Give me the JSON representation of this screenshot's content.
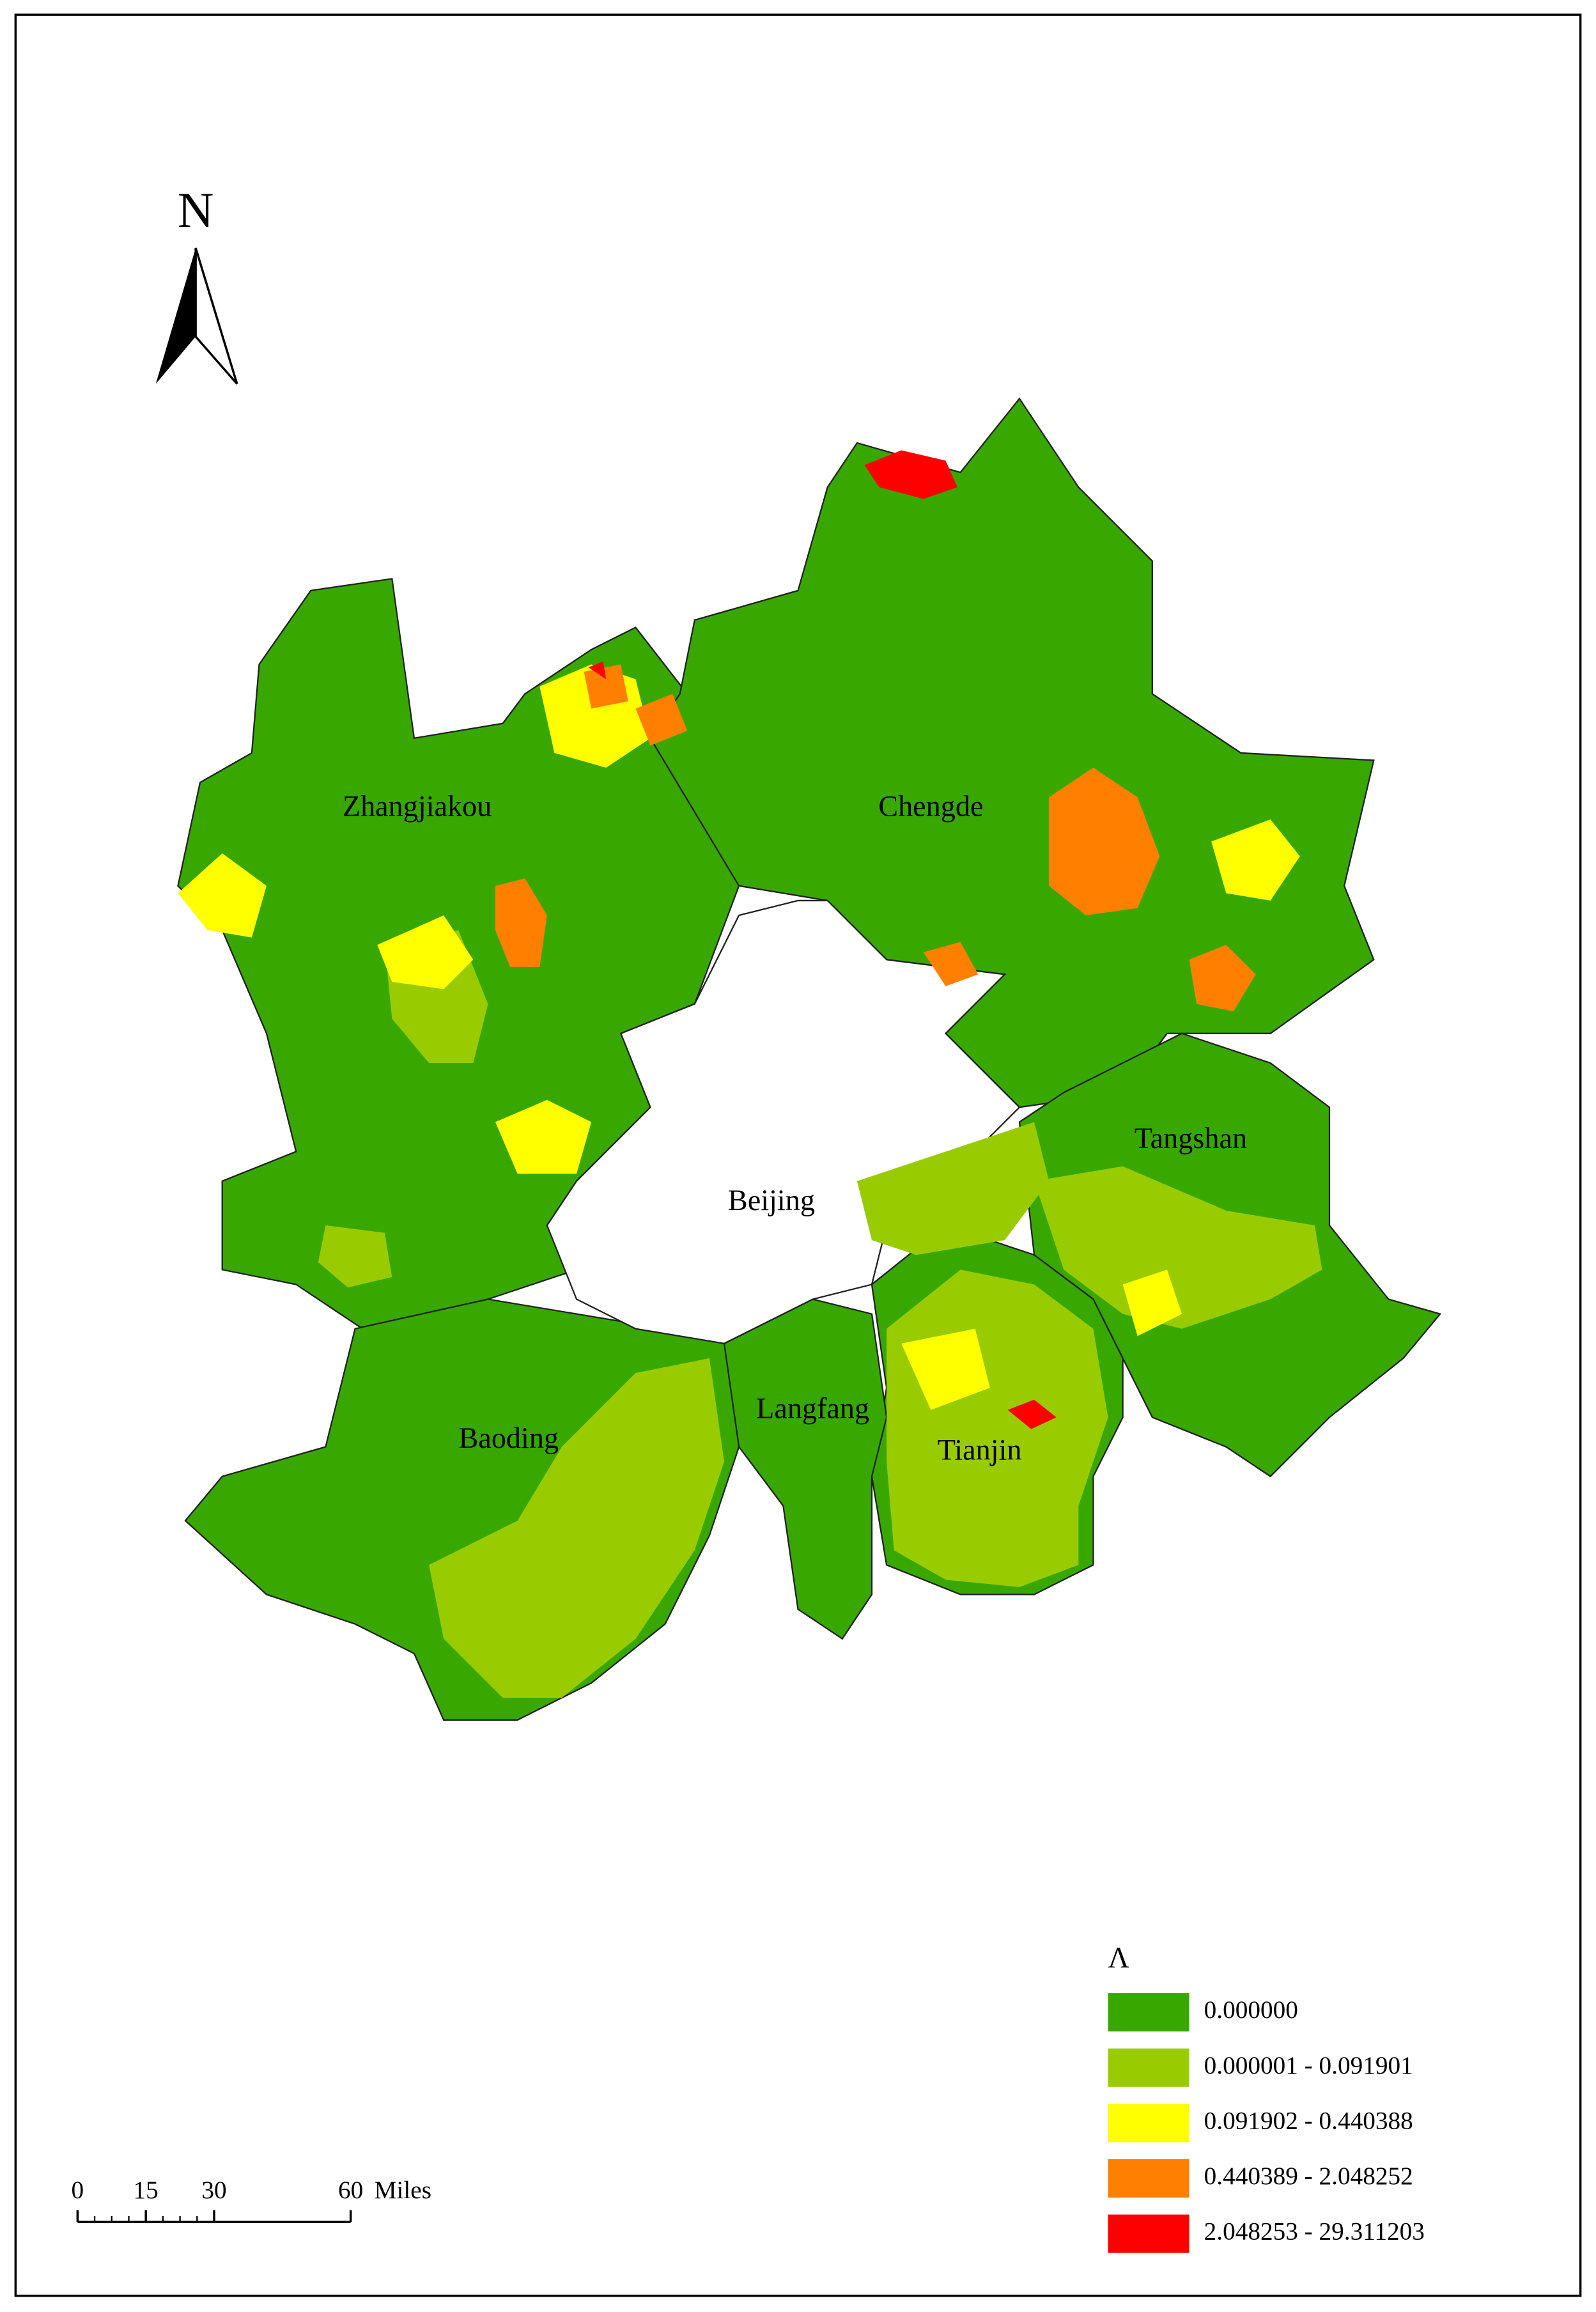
{
  "north_arrow": {
    "label": "N"
  },
  "regions": [
    "Zhangjiakou",
    "Chengde",
    "Beijing",
    "Tangshan",
    "Baoding",
    "Langfang",
    "Tianjin"
  ],
  "legend": {
    "title": "Λ",
    "items": [
      {
        "label": "0.000000",
        "color": "#38a800"
      },
      {
        "label": "0.000001 - 0.091901",
        "color": "#98cc00"
      },
      {
        "label": "0.091902 - 0.440388",
        "color": "#ffff00"
      },
      {
        "label": "0.440389 - 2.048252",
        "color": "#ff8000"
      },
      {
        "label": "2.048253 - 29.311203",
        "color": "#ff0000"
      }
    ]
  },
  "scale_bar": {
    "ticks": [
      0,
      15,
      30,
      60
    ],
    "unit": "Miles"
  }
}
